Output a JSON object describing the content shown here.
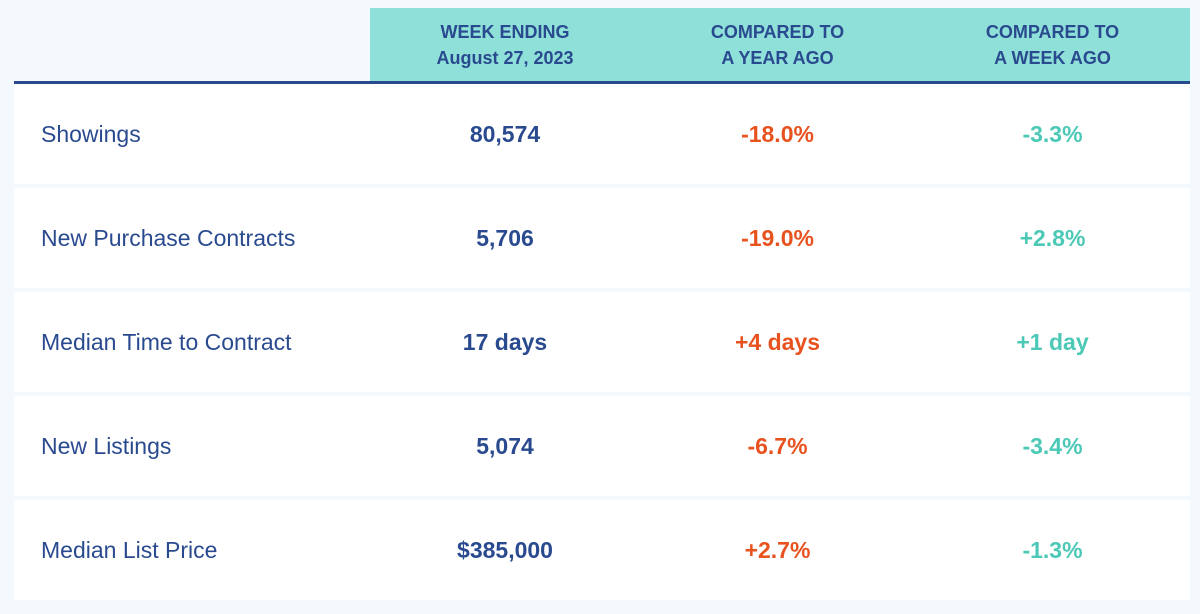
{
  "header": {
    "col1": [
      "WEEK ENDING",
      "August 27, 2023"
    ],
    "col2": [
      "COMPARED TO",
      "A YEAR AGO"
    ],
    "col3": [
      "COMPARED TO",
      "A WEEK AGO"
    ]
  },
  "rows": [
    {
      "label": "Showings",
      "value": "80,574",
      "year": "-18.0%",
      "week": "-3.3%"
    },
    {
      "label": "New Purchase Contracts",
      "value": "5,706",
      "year": "-19.0%",
      "week": "+2.8%"
    },
    {
      "label": "Median Time to Contract",
      "value": "17 days",
      "year": "+4 days",
      "week": "+1 day"
    },
    {
      "label": "New Listings",
      "value": "5,074",
      "year": "-6.7%",
      "week": "-3.4%"
    },
    {
      "label": "Median List Price",
      "value": "$385,000",
      "year": "+2.7%",
      "week": "-1.3%"
    }
  ],
  "colors": {
    "navy": "#2a4a8f",
    "orange": "#e8521f",
    "teal_text": "#4cc9b6",
    "header_bg": "#8ee0d8"
  }
}
